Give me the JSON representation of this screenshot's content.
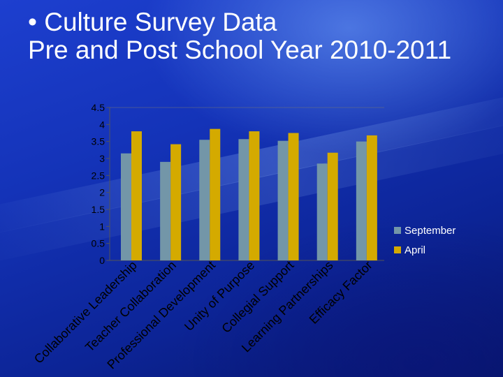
{
  "slide": {
    "title": "• Culture Survey Data\nPre and Post School Year 2010-2011"
  },
  "chart_data": {
    "type": "bar",
    "categories": [
      "Collaborative Leadership",
      "Teacher Collaboration",
      "Professional Development",
      "Unity of Purpose",
      "Collegial Support",
      "Learning Partnerships",
      "Efficacy Factor"
    ],
    "series": [
      {
        "name": "September",
        "color": "#7396a8",
        "values": [
          3.15,
          2.9,
          3.55,
          3.57,
          3.52,
          2.85,
          3.5
        ]
      },
      {
        "name": "April",
        "color": "#d4aa00",
        "values": [
          3.8,
          3.42,
          3.87,
          3.8,
          3.75,
          3.17,
          3.68
        ]
      }
    ],
    "yticks": [
      "0",
      "0.5",
      "1",
      "1.5",
      "2",
      "2.5",
      "3",
      "3.5",
      "4",
      "4.5"
    ],
    "ylim": [
      0,
      4.5
    ],
    "xlabel": "",
    "ylabel": "",
    "grid": false,
    "legend": "right"
  }
}
